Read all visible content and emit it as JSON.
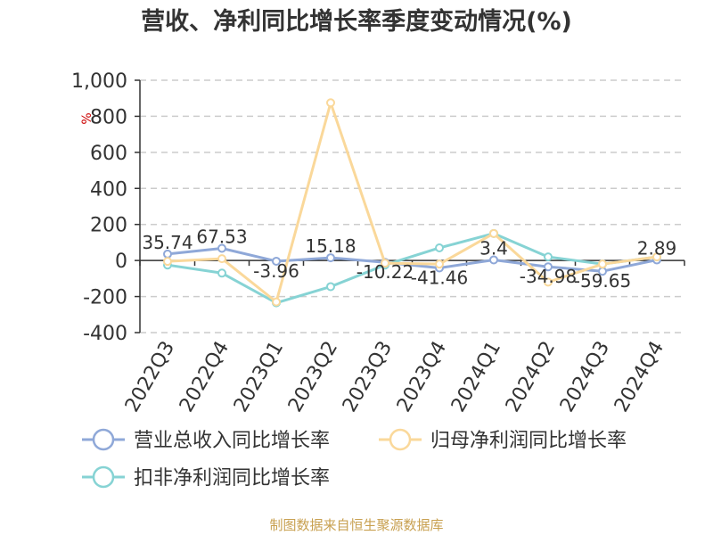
{
  "chart_data": {
    "type": "line",
    "title": "营收、净利同比增长率季度变动情况(%)",
    "unit": "%",
    "categories": [
      "2022Q3",
      "2022Q4",
      "2023Q1",
      "2023Q2",
      "2023Q3",
      "2023Q4",
      "2024Q1",
      "2024Q2",
      "2024Q3",
      "2024Q4"
    ],
    "ylim": [
      -400,
      1000
    ],
    "yticks": [
      -400,
      -200,
      0,
      200,
      400,
      600,
      800,
      1000
    ],
    "ytick_labels": [
      "-400",
      "-200",
      "0",
      "200",
      "400",
      "600",
      "800",
      "1,000"
    ],
    "grid": true,
    "legend_position": "bottom",
    "series": [
      {
        "name": "营业总收入同比增长率",
        "color": "#8fa8d8",
        "values": [
          35.74,
          67.53,
          -3.96,
          15.18,
          -10.22,
          -41.46,
          3.4,
          -34.98,
          -59.65,
          2.89
        ],
        "labels": [
          "35.74",
          "67.53",
          "-3.96",
          "15.18",
          "-10.22",
          "-41.46",
          "3.4",
          "-34.98",
          "-59.65",
          "2.89"
        ]
      },
      {
        "name": "归母净利润同比增长率",
        "color": "#fad89a",
        "values": [
          -5,
          10,
          -230,
          875,
          -15,
          -20,
          150,
          -120,
          -20,
          20
        ]
      },
      {
        "name": "扣非净利润同比增长率",
        "color": "#86d3d4",
        "values": [
          -25,
          -70,
          -235,
          -145,
          -25,
          70,
          150,
          20,
          -20,
          20
        ]
      }
    ]
  },
  "source": "制图数据来自恒生聚源数据库"
}
